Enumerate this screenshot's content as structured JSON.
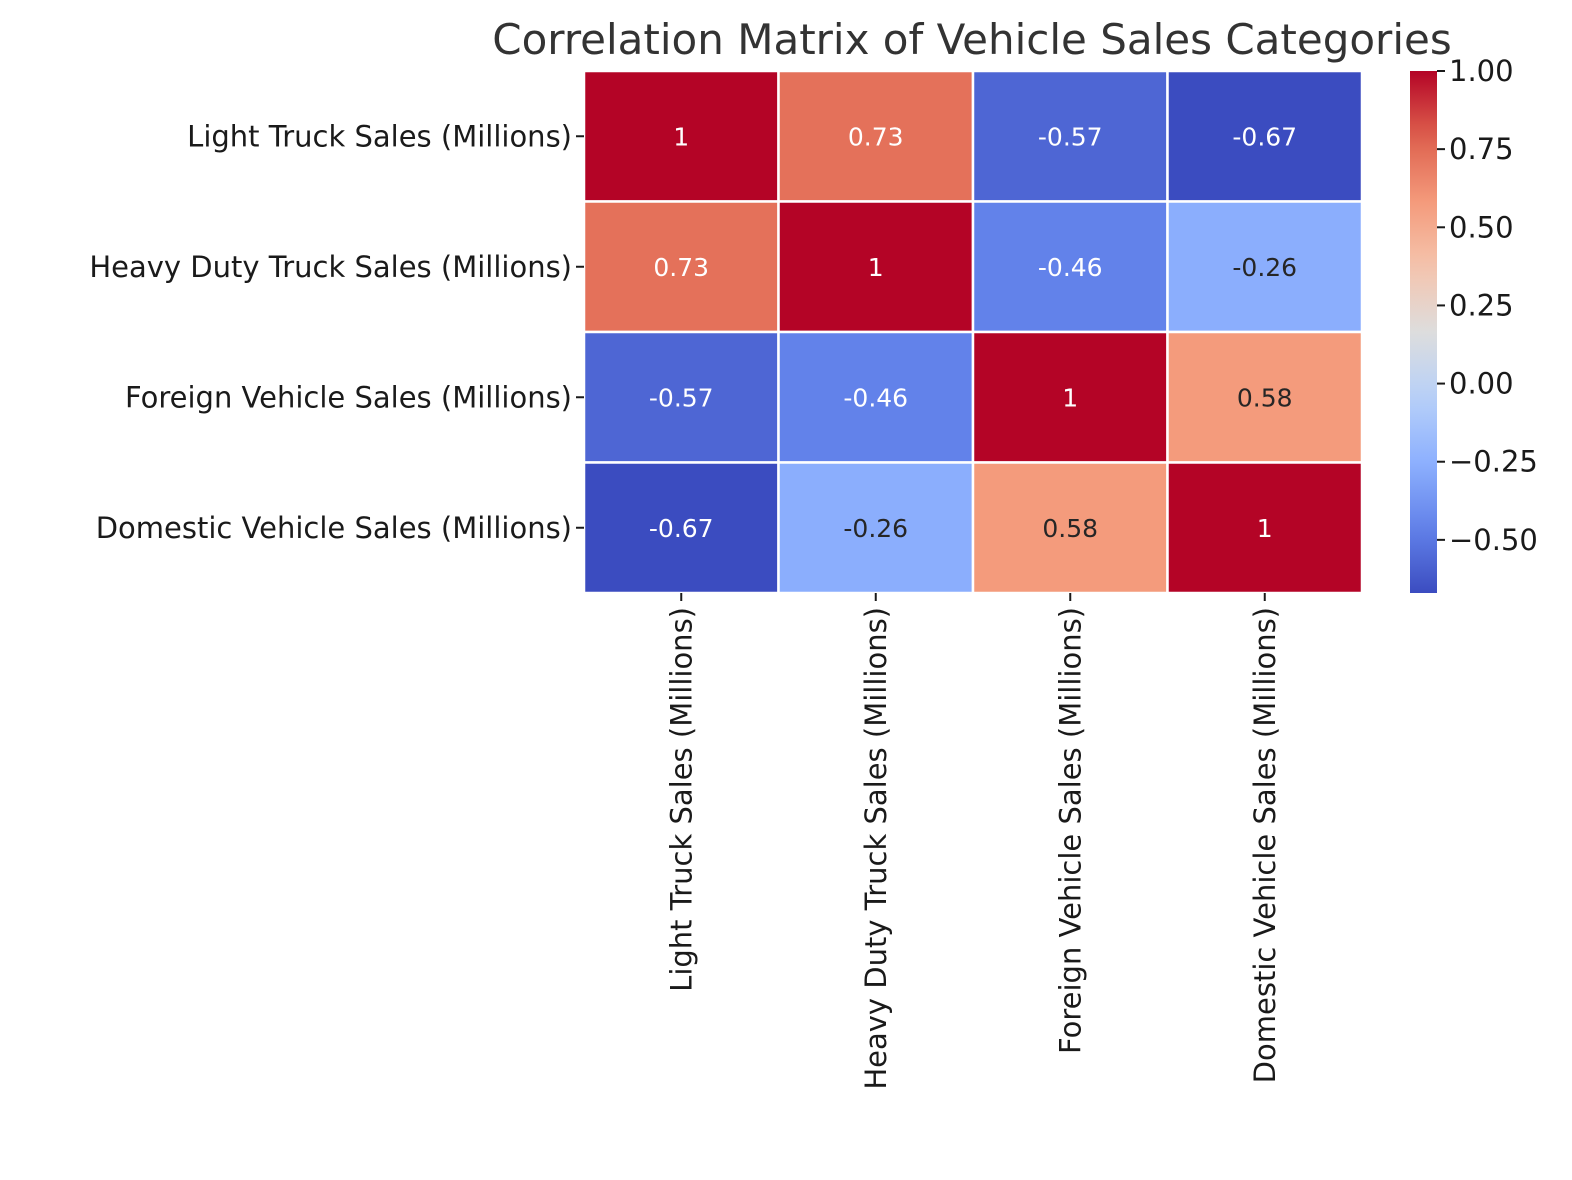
{
  "chart_data": {
    "type": "heatmap",
    "title": "Correlation Matrix of Vehicle Sales Categories",
    "row_labels": [
      "Light Truck Sales (Millions)",
      "Heavy Duty Truck Sales (Millions)",
      "Foreign Vehicle Sales (Millions)",
      "Domestic Vehicle Sales (Millions)"
    ],
    "col_labels": [
      "Light Truck Sales (Millions)",
      "Heavy Duty Truck Sales (Millions)",
      "Foreign Vehicle Sales (Millions)",
      "Domestic Vehicle Sales (Millions)"
    ],
    "values": [
      [
        1,
        0.73,
        -0.57,
        -0.67
      ],
      [
        0.73,
        1,
        -0.46,
        -0.26
      ],
      [
        -0.57,
        -0.46,
        1,
        0.58
      ],
      [
        -0.67,
        -0.26,
        0.58,
        1
      ]
    ],
    "annotations": [
      [
        "1",
        "0.73",
        "-0.57",
        "-0.67"
      ],
      [
        "0.73",
        "1",
        "-0.46",
        "-0.26"
      ],
      [
        "-0.57",
        "-0.46",
        "1",
        "0.58"
      ],
      [
        "-0.67",
        "-0.26",
        "0.58",
        "1"
      ]
    ],
    "colormap": "coolwarm",
    "colorbar": {
      "range": [
        -0.67,
        1.0
      ],
      "ticks": [
        1.0,
        0.75,
        0.5,
        0.25,
        0.0,
        -0.25,
        -0.5
      ],
      "tick_labels": [
        "1.00",
        "0.75",
        "0.50",
        "0.25",
        "0.00",
        "−0.25",
        "−0.50"
      ]
    }
  }
}
